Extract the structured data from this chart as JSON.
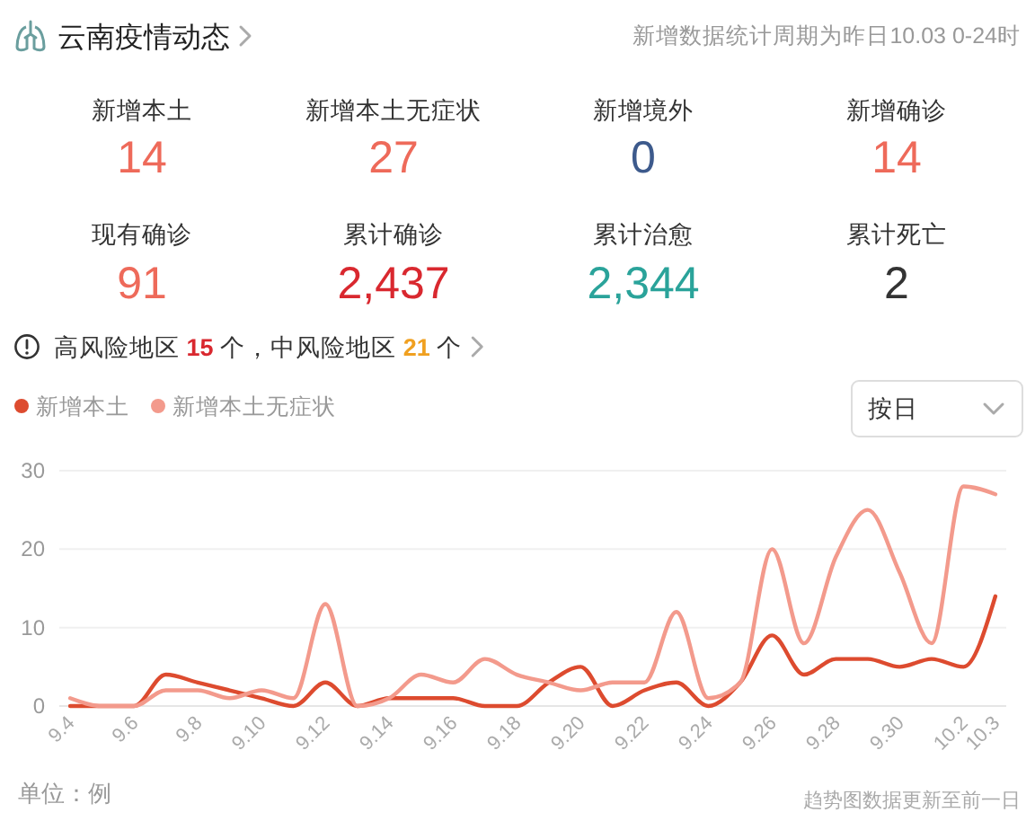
{
  "chart_data": [
    {
      "type": "other",
      "title": "云南疫情动态",
      "subtitle": "新增数据统计周期为昨日10.03 0-24时",
      "categories": [
        "新增本土",
        "新增本土无症状",
        "新增境外",
        "新增确诊",
        "现有确诊",
        "累计确诊",
        "累计治愈",
        "累计死亡"
      ],
      "values": [
        14,
        27,
        0,
        14,
        91,
        2437,
        2344,
        2
      ],
      "value_labels": [
        "14",
        "27",
        "0",
        "14",
        "91",
        "2,437",
        "2,344",
        "2"
      ],
      "colors": [
        "#ee6a5a",
        "#ee6a5a",
        "#3d5a8c",
        "#ee6a5a",
        "#ee6a5a",
        "#d9282f",
        "#2aa39a",
        "#333333"
      ],
      "annotations": [
        "高风险地区 15 个，中风险地区 21 个"
      ]
    },
    {
      "type": "line",
      "categories": [
        "9.4",
        null,
        "9.6",
        null,
        "9.8",
        null,
        "9.10",
        null,
        "9.12",
        null,
        "9.14",
        null,
        "9.16",
        null,
        "9.18",
        null,
        "9.20",
        null,
        "9.22",
        null,
        "9.24",
        null,
        "9.26",
        null,
        "9.28",
        null,
        "9.30",
        null,
        "10.2",
        "10.3"
      ],
      "series": [
        {
          "name": "新增本土",
          "color": "#dd4b2f",
          "values": [
            0,
            0,
            0,
            4,
            3,
            2,
            1,
            0,
            3,
            0,
            1,
            1,
            1,
            0,
            0,
            3,
            5,
            0,
            2,
            3,
            0,
            3,
            9,
            4,
            6,
            6,
            5,
            6,
            5,
            14
          ]
        },
        {
          "name": "新增本土无症状",
          "color": "#f39a8c",
          "values": [
            1,
            0,
            0,
            2,
            2,
            1,
            2,
            1,
            13,
            0,
            1,
            4,
            3,
            6,
            4,
            3,
            2,
            3,
            3,
            12,
            1,
            3,
            20,
            8,
            19,
            25,
            17,
            8,
            28,
            27
          ]
        }
      ],
      "ylim": [
        0,
        30
      ],
      "yticks": [
        0,
        10,
        20,
        30
      ],
      "grid": "y",
      "legend": "top left",
      "annotations": [
        "按日",
        "单位：例",
        "趋势图数据更新至前一日"
      ]
    }
  ]
}
